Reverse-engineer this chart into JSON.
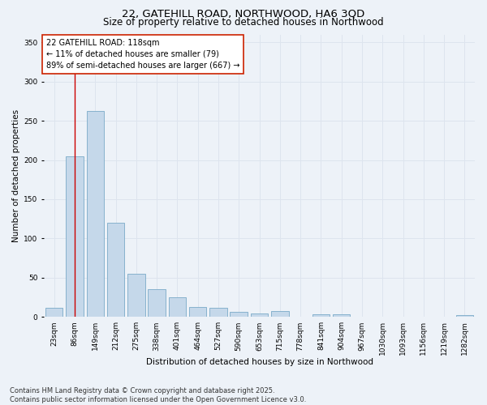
{
  "title_line1": "22, GATEHILL ROAD, NORTHWOOD, HA6 3QD",
  "title_line2": "Size of property relative to detached houses in Northwood",
  "xlabel": "Distribution of detached houses by size in Northwood",
  "ylabel": "Number of detached properties",
  "bar_color": "#c5d8ea",
  "bar_edge_color": "#7aaac8",
  "bar_edge_width": 0.6,
  "categories": [
    "23sqm",
    "86sqm",
    "149sqm",
    "212sqm",
    "275sqm",
    "338sqm",
    "401sqm",
    "464sqm",
    "527sqm",
    "590sqm",
    "653sqm",
    "715sqm",
    "778sqm",
    "841sqm",
    "904sqm",
    "967sqm",
    "1030sqm",
    "1093sqm",
    "1156sqm",
    "1219sqm",
    "1282sqm"
  ],
  "values": [
    12,
    205,
    262,
    120,
    55,
    35,
    25,
    13,
    12,
    7,
    5,
    8,
    0,
    3,
    3,
    0,
    0,
    0,
    0,
    0,
    2
  ],
  "ylim": [
    0,
    360
  ],
  "yticks": [
    0,
    50,
    100,
    150,
    200,
    250,
    300,
    350
  ],
  "annotation_line1": "22 GATEHILL ROAD: 118sqm",
  "annotation_line2": "← 11% of detached houses are smaller (79)",
  "annotation_line3": "89% of semi-detached houses are larger (667) →",
  "vline_x": 1.0,
  "vline_color": "#cc0000",
  "annotation_box_facecolor": "#ffffff",
  "annotation_box_edgecolor": "#cc2200",
  "grid_color": "#dde4ee",
  "bg_color": "#edf2f8",
  "footer_line1": "Contains HM Land Registry data © Crown copyright and database right 2025.",
  "footer_line2": "Contains public sector information licensed under the Open Government Licence v3.0.",
  "title_fontsize": 9.5,
  "subtitle_fontsize": 8.5,
  "axis_label_fontsize": 7.5,
  "tick_fontsize": 6.5,
  "annotation_fontsize": 7,
  "footer_fontsize": 6
}
